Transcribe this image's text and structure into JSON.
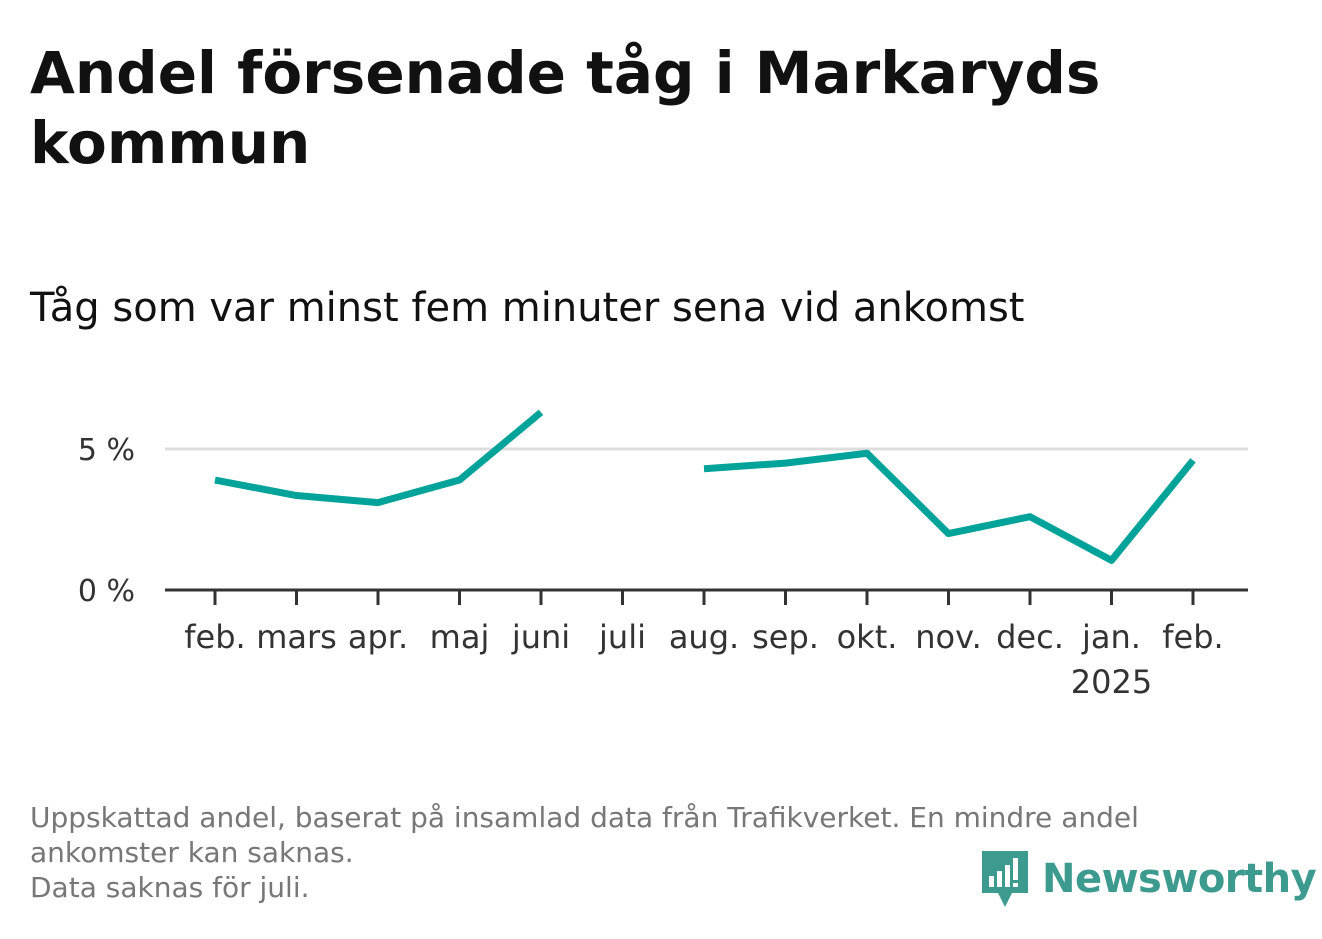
{
  "title": "Andel försenade tåg i Markaryds kommun",
  "subtitle": "Tåg som var minst fem minuter sena vid ankomst",
  "chart_data": {
    "type": "line",
    "x": [
      "feb.",
      "mars",
      "apr.",
      "maj",
      "juni",
      "juli",
      "aug.",
      "sep.",
      "okt.",
      "nov.",
      "dec.",
      "jan.",
      "feb."
    ],
    "x_sublabels": [
      "",
      "",
      "",
      "",
      "",
      "",
      "",
      "",
      "",
      "",
      "",
      "2025",
      ""
    ],
    "series": [
      {
        "values": [
          3.9,
          3.35,
          3.1,
          3.9,
          6.3,
          null,
          4.3,
          4.5,
          4.85,
          2.0,
          2.6,
          1.05,
          4.6
        ]
      }
    ],
    "yticks": [
      0,
      5
    ],
    "ytick_labels": [
      "0 %",
      "5 %"
    ],
    "ylim": [
      0,
      7.5
    ],
    "grid": true,
    "line_color": "#00a39a",
    "gridline_color": "#dddddd",
    "axis_color": "#333333"
  },
  "footnote": {
    "lines": [
      "Uppskattad andel, baserat på insamlad data från Trafikverket. En mindre andel",
      "ankomster kan saknas.",
      "Data saknas för juli."
    ]
  },
  "logo": {
    "text": "Newsworthy",
    "icon": "newsworthy-logo-icon",
    "color": "#3d9a8f"
  }
}
